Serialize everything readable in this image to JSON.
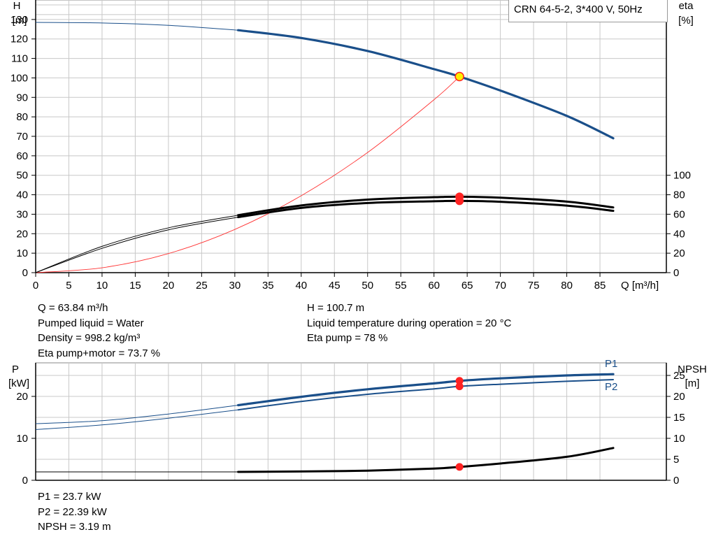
{
  "title_box": "CRN 64-5-2, 3*400 V, 50Hz",
  "top_info": {
    "left": [
      "Q = 63.84 m³/h",
      "Pumped liquid = Water",
      "Density = 998.2 kg/m³",
      "Eta pump+motor = 73.7 %"
    ],
    "right": [
      "H = 100.7 m",
      "Liquid temperature during operation = 20 °C",
      "Eta pump = 78 %"
    ]
  },
  "bottom_info": [
    "P1 = 23.7 kW",
    "P2 = 22.39 kW",
    "NPSH = 3.19 m"
  ],
  "colors": {
    "head": "#1a4f8a",
    "eta": "#000000",
    "system": "#ff3333",
    "power": "#1a4f8a",
    "npsh": "#000000",
    "point": "#ff2222",
    "duty": "#ffee00"
  },
  "chart_data": [
    {
      "type": "line",
      "title": "",
      "xlabel": "Q [m³/h]",
      "ylabel_left": [
        "H",
        "[m]"
      ],
      "ylabel_right": [
        "eta",
        "[%]"
      ],
      "xlim": [
        0,
        95
      ],
      "ylim_left": [
        0,
        140
      ],
      "ylim_right": [
        0,
        280
      ],
      "x_ticks": [
        0,
        5,
        10,
        15,
        20,
        25,
        30,
        35,
        40,
        45,
        50,
        55,
        60,
        65,
        70,
        75,
        80,
        85
      ],
      "y_ticks_left": [
        0,
        10,
        20,
        30,
        40,
        50,
        60,
        70,
        80,
        90,
        100,
        110,
        120,
        130
      ],
      "y_ticks_right": [
        0,
        20,
        40,
        60,
        80,
        100
      ],
      "grid": true,
      "series": [
        {
          "name": "H",
          "axis": "left",
          "x": [
            0,
            10,
            20,
            30.5,
            40,
            50,
            60,
            63.84,
            70,
            80,
            87
          ],
          "y": [
            128.5,
            128.2,
            127,
            124.5,
            120.5,
            113.8,
            104.5,
            100.7,
            93.5,
            80.5,
            69
          ]
        },
        {
          "name": "eta pump",
          "axis": "right",
          "x": [
            0,
            10,
            20,
            30.5,
            40,
            50,
            60,
            63.84,
            70,
            80,
            87
          ],
          "y": [
            0,
            27,
            46,
            59,
            69,
            75,
            77.5,
            78,
            77,
            73,
            67
          ]
        },
        {
          "name": "eta pump+motor",
          "axis": "right",
          "x": [
            0,
            10,
            20,
            30.5,
            40,
            50,
            60,
            63.84,
            70,
            80,
            87
          ],
          "y": [
            0,
            25,
            44,
            57,
            66.5,
            71.5,
            73.3,
            73.7,
            72.8,
            68.8,
            63.5
          ]
        },
        {
          "name": "system curve",
          "axis": "left",
          "x": [
            0,
            10,
            20,
            30,
            40,
            50,
            60,
            63.84
          ],
          "y": [
            0,
            2.5,
            9.8,
            22.2,
            39.5,
            61.7,
            88.8,
            100.7
          ]
        }
      ],
      "duty_point": {
        "x": 63.84,
        "h": 100.7,
        "eta": [
          78,
          73.7
        ]
      }
    },
    {
      "type": "line",
      "title": "",
      "ylabel_left": [
        "P",
        "[kW]"
      ],
      "ylabel_right": [
        "NPSH",
        "[m]"
      ],
      "xlim": [
        0,
        95
      ],
      "ylim_left": [
        0,
        28
      ],
      "ylim_right": [
        0,
        28
      ],
      "y_ticks_left": [
        0,
        10,
        20
      ],
      "y_ticks_right": [
        0,
        5,
        10,
        15,
        20,
        25
      ],
      "series": [
        {
          "name": "P1",
          "axis": "left",
          "x": [
            0,
            10,
            20,
            30.5,
            40,
            50,
            60,
            63.84,
            70,
            80,
            87
          ],
          "y": [
            13.5,
            14.2,
            15.8,
            17.9,
            19.9,
            21.7,
            23.1,
            23.7,
            24.3,
            25.0,
            25.3
          ]
        },
        {
          "name": "P2",
          "axis": "left",
          "x": [
            0,
            10,
            20,
            30.5,
            40,
            50,
            60,
            63.84,
            70,
            80,
            87
          ],
          "y": [
            12.1,
            13.2,
            14.8,
            16.8,
            18.8,
            20.5,
            21.8,
            22.39,
            22.9,
            23.6,
            24.0
          ]
        },
        {
          "name": "NPSH",
          "axis": "right",
          "x": [
            0,
            30.5,
            40,
            50,
            60,
            63.84,
            70,
            80,
            87
          ],
          "y": [
            2.0,
            2.0,
            2.1,
            2.3,
            2.8,
            3.19,
            4.0,
            5.6,
            7.7
          ]
        }
      ],
      "duty_point": {
        "x": 63.84,
        "p": [
          23.7,
          22.39
        ],
        "npsh": 3.19
      }
    }
  ]
}
